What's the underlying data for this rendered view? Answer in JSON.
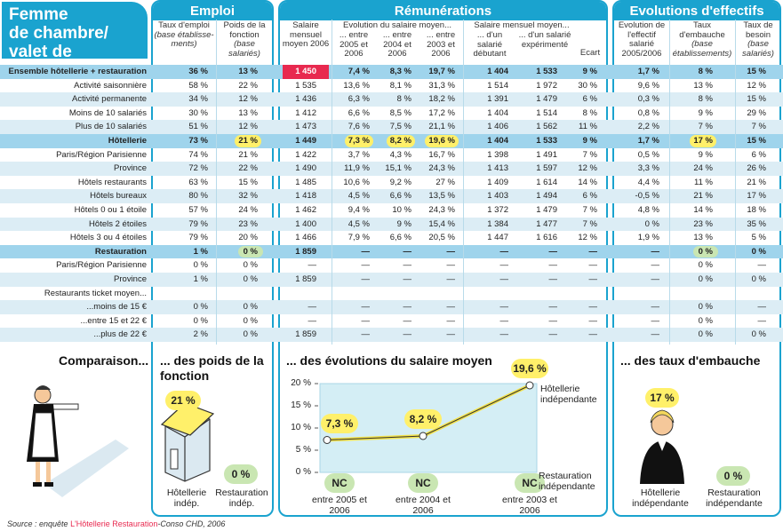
{
  "title": [
    "Femme",
    "de chambre/",
    "valet de chambre"
  ],
  "sections": {
    "emploi": "Emploi",
    "remu": "Rémunérations",
    "evol": "Evolutions d'effectifs"
  },
  "headers": {
    "taux_emploi": "Taux d'emploi",
    "taux_emploi_sub": "(base établisse-ments)",
    "poids": "Poids de la fonction",
    "poids_sub": "(base salariés)",
    "salaire": "Salaire mensuel moyen 2006",
    "evol_group": "Evolution du salaire moyen...",
    "e2005": "... entre 2005 et 2006",
    "e2004": "... entre 2004 et 2006",
    "e2003": "... entre 2003 et 2006",
    "sm_group": "Salaire mensuel moyen...",
    "debutant": "... d'un salarié débutant",
    "experimente": "... d'un salarié expérimenté",
    "ecart": "Ecart",
    "evol_eff": "Evolution de l'effectif salarié 2005/2006",
    "taux_emb": "Taux d'embauche",
    "taux_emb_sub": "(base établissements)",
    "taux_bes": "Taux de besoin",
    "taux_bes_sub": "(base salariés)"
  },
  "rows": [
    {
      "label": "Ensemble hôtellerie + restauration",
      "style": "hl",
      "v": [
        "36 %",
        "13 %",
        "1 450",
        "7,4 %",
        "8,3 %",
        "19,7 %",
        "1 404",
        "1 533",
        "9 %",
        "1,7 %",
        "8 %",
        "15 %"
      ]
    },
    {
      "label": "Activité saisonnière",
      "style": "",
      "v": [
        "58 %",
        "22 %",
        "1 535",
        "13,6 %",
        "8,1 %",
        "31,3 %",
        "1 514",
        "1 972",
        "30 %",
        "9,6 %",
        "13 %",
        "12 %"
      ]
    },
    {
      "label": "Activité permanente",
      "style": "band",
      "v": [
        "34 %",
        "12 %",
        "1 436",
        "6,3 %",
        "8 %",
        "18,2 %",
        "1 391",
        "1 479",
        "6 %",
        "0,3 %",
        "8 %",
        "15 %"
      ]
    },
    {
      "label": "Moins de 10 salariés",
      "style": "",
      "v": [
        "30 %",
        "13 %",
        "1 412",
        "6,6 %",
        "8,5 %",
        "17,2 %",
        "1 404",
        "1 514",
        "8 %",
        "0,8 %",
        "9 %",
        "29 %"
      ]
    },
    {
      "label": "Plus de 10 salariés",
      "style": "band",
      "v": [
        "51 %",
        "12 %",
        "1 473",
        "7,6 %",
        "7,5 %",
        "21,1 %",
        "1 406",
        "1 562",
        "11 %",
        "2,2 %",
        "7 %",
        "7 %"
      ]
    },
    {
      "label": "Hôtellerie",
      "style": "hl",
      "v": [
        "73 %",
        "21 %",
        "1 449",
        "7,3 %",
        "8,2 %",
        "19,6 %",
        "1 404",
        "1 533",
        "9 %",
        "1,7 %",
        "17 %",
        "15 %"
      ],
      "yellow": [
        1,
        3,
        4,
        5,
        10
      ]
    },
    {
      "label": "Paris/Région Parisienne",
      "style": "",
      "v": [
        "74 %",
        "21 %",
        "1 422",
        "3,7 %",
        "4,3 %",
        "16,7 %",
        "1 398",
        "1 491",
        "7 %",
        "0,5 %",
        "9 %",
        "6 %"
      ]
    },
    {
      "label": "Province",
      "style": "band",
      "v": [
        "72 %",
        "22 %",
        "1 490",
        "11,9 %",
        "15,1 %",
        "24,3 %",
        "1 413",
        "1 597",
        "12 %",
        "3,3 %",
        "24 %",
        "26 %"
      ]
    },
    {
      "label": "Hôtels restaurants",
      "style": "",
      "v": [
        "63 %",
        "15 %",
        "1 485",
        "10,6 %",
        "9,2 %",
        "27 %",
        "1 409",
        "1 614",
        "14 %",
        "4,4 %",
        "11 %",
        "21 %"
      ]
    },
    {
      "label": "Hôtels bureaux",
      "style": "band",
      "v": [
        "80 %",
        "32 %",
        "1 418",
        "4,5 %",
        "6,6 %",
        "13,5 %",
        "1 403",
        "1 494",
        "6 %",
        "-0,5 %",
        "21 %",
        "17 %"
      ]
    },
    {
      "label": "Hôtels 0 ou 1 étoile",
      "style": "",
      "v": [
        "57 %",
        "24 %",
        "1 462",
        "9,4 %",
        "10 %",
        "24,3 %",
        "1 372",
        "1 479",
        "7 %",
        "4,8 %",
        "14 %",
        "18 %"
      ]
    },
    {
      "label": "Hôtels 2 étoiles",
      "style": "band",
      "v": [
        "79 %",
        "23 %",
        "1 400",
        "4,5 %",
        "9 %",
        "15,4 %",
        "1 384",
        "1 477",
        "7 %",
        "0 %",
        "23 %",
        "35 %"
      ]
    },
    {
      "label": "Hôtels 3 ou 4 étoiles",
      "style": "",
      "v": [
        "79 %",
        "20 %",
        "1 466",
        "7,9 %",
        "6,6 %",
        "20,5 %",
        "1 447",
        "1 616",
        "12 %",
        "1,9 %",
        "13 %",
        "5 %"
      ]
    },
    {
      "label": "Restauration",
      "style": "hl",
      "v": [
        "1 %",
        "0 %",
        "1 859",
        "—",
        "—",
        "—",
        "—",
        "—",
        "—",
        "—",
        "0 %",
        "0 %"
      ],
      "green": [
        1,
        10
      ]
    },
    {
      "label": "Paris/Région Parisienne",
      "style": "",
      "v": [
        "0 %",
        "0 %",
        "—",
        "—",
        "—",
        "—",
        "—",
        "—",
        "—",
        "—",
        "0 %",
        "—"
      ]
    },
    {
      "label": "Province",
      "style": "band",
      "v": [
        "1 %",
        "0 %",
        "1 859",
        "—",
        "—",
        "—",
        "—",
        "—",
        "—",
        "—",
        "0 %",
        "0 %"
      ]
    },
    {
      "label": "Restaurants ticket moyen...",
      "style": "",
      "v": [
        "",
        "",
        "",
        "",
        "",
        "",
        "",
        "",
        "",
        "",
        "",
        ""
      ]
    },
    {
      "label": "...moins de 15 €",
      "style": "band",
      "v": [
        "0 %",
        "0 %",
        "—",
        "—",
        "—",
        "—",
        "—",
        "—",
        "—",
        "—",
        "0 %",
        "—"
      ]
    },
    {
      "label": "...entre 15 et 22 €",
      "style": "",
      "v": [
        "0 %",
        "0 %",
        "—",
        "—",
        "—",
        "—",
        "—",
        "—",
        "—",
        "—",
        "0 %",
        "—"
      ]
    },
    {
      "label": "...plus de 22 €",
      "style": "band",
      "v": [
        "2 %",
        "0 %",
        "1 859",
        "—",
        "—",
        "—",
        "—",
        "—",
        "—",
        "—",
        "0 %",
        "0 %"
      ]
    }
  ],
  "bottom": {
    "comparaison": "Comparaison...",
    "poids_title": "... des poids de la fonction",
    "poids_hot": "21 %",
    "poids_rest": "0 %",
    "hot_label": "Hôtellerie indép.",
    "rest_label": "Restauration indép.",
    "evol_title": "... des évolutions du salaire moyen",
    "embauche_title": "... des taux d'embauche",
    "emb_hot": "17 %",
    "emb_rest": "0 %",
    "emb_hot_label": "Hôtellerie indépendante",
    "emb_rest_label": "Restauration indépendante"
  },
  "chart_data": {
    "type": "line",
    "title": "... des évolutions du salaire moyen",
    "categories": [
      "entre 2005 et 2006",
      "entre 2004 et 2006",
      "entre 2003 et 2006"
    ],
    "y_ticks": [
      "0 %",
      "5 %",
      "10 %",
      "15 %",
      "20 %"
    ],
    "ylim": [
      0,
      20
    ],
    "series": [
      {
        "name": "Hôtellerie indépendante",
        "values": [
          7.3,
          8.2,
          19.6
        ],
        "labels": [
          "7,3 %",
          "8,2 %",
          "19,6 %"
        ],
        "color": "#fff06a"
      },
      {
        "name": "Restauration indépendante",
        "values": [
          null,
          null,
          null
        ],
        "labels": [
          "NC",
          "NC",
          "NC"
        ],
        "color": "#c9e6b2"
      }
    ]
  },
  "source": {
    "prefix": "Source : enquête ",
    "brand": "L'Hôtellerie Restauration",
    "suffix": "-Conso CHD, 2006"
  }
}
